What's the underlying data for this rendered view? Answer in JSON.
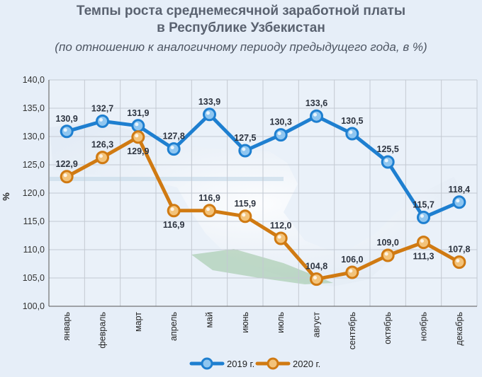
{
  "title": {
    "line1": "Темпы роста среднемесячной заработной платы",
    "line2": "в Республике Узбекистан",
    "subtitle": "(по отношению к аналогичному периоду предыдущего года, в %)"
  },
  "colors": {
    "series_2019": "#1e7fd0",
    "series_2020": "#d07a12",
    "background": "#e6eef8"
  },
  "chart_data": {
    "type": "line",
    "ylabel": "%",
    "ylim": [
      100,
      140
    ],
    "yticks": [
      "100,0",
      "105,0",
      "110,0",
      "115,0",
      "120,0",
      "125,0",
      "130,0",
      "135,0",
      "140,0"
    ],
    "grid": true,
    "legend_position": "bottom",
    "categories": [
      "январь",
      "февраль",
      "март",
      "апрель",
      "май",
      "июнь",
      "июль",
      "август",
      "сентябрь",
      "октябрь",
      "ноябрь",
      "декабрь"
    ],
    "series": [
      {
        "name": "2019 г.",
        "values": [
          130.9,
          132.7,
          131.9,
          127.8,
          133.9,
          127.5,
          130.3,
          133.6,
          130.5,
          125.5,
          115.7,
          118.4
        ],
        "labels": [
          "130,9",
          "132,7",
          "131,9",
          "127,8",
          "133,9",
          "127,5",
          "130,3",
          "133,6",
          "130,5",
          "125,5",
          "115,7",
          "118,4"
        ]
      },
      {
        "name": "2020 г.",
        "values": [
          122.9,
          126.3,
          129.9,
          116.9,
          116.9,
          115.9,
          112.0,
          104.8,
          106.0,
          109.0,
          111.3,
          107.8
        ],
        "labels": [
          "122,9",
          "126,3",
          "129,9",
          "116,9",
          "116,9",
          "115,9",
          "112,0",
          "104,8",
          "106,0",
          "109,0",
          "111,3",
          "107,8"
        ]
      }
    ]
  }
}
